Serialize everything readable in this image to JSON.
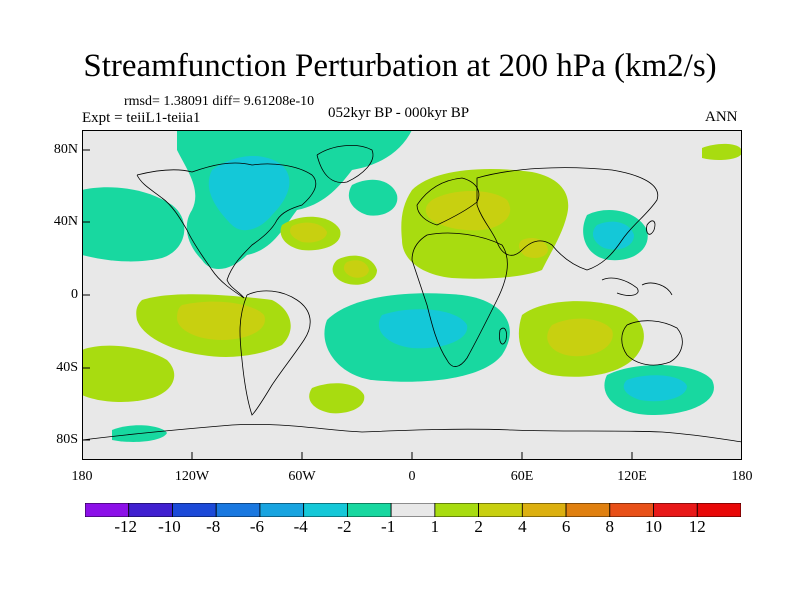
{
  "figure": {
    "title": "Streamfunction Perturbation at 200 hPa (km2/s)",
    "stats_label": "rmsd= 1.38091 diff= 9.61208e-10",
    "experiment_label": "Expt = teiiL1-teiia1",
    "period_label": "052kyr BP - 000kyr BP",
    "season_label": "ANN"
  },
  "axes": {
    "x_ticks": [
      "180",
      "120W",
      "60W",
      "0",
      "60E",
      "120E",
      "180"
    ],
    "y_ticks": [
      "80N",
      "40N",
      "0",
      "40S",
      "80S"
    ]
  },
  "colorbar": {
    "labels": [
      "-12",
      "-10",
      "-8",
      "-6",
      "-4",
      "-2",
      "-1",
      "1",
      "2",
      "4",
      "6",
      "8",
      "10",
      "12"
    ],
    "colors": [
      "#8c10e8",
      "#4020d0",
      "#1c4ad8",
      "#1a78e0",
      "#18a4e0",
      "#14c8d8",
      "#18d8a0",
      "#e8e8e8",
      "#a8dc10",
      "#c8d010",
      "#dcb010",
      "#e08010",
      "#e85018",
      "#e81818",
      "#e80808"
    ]
  },
  "map_colors": {
    "background": "#e8e8e8",
    "cyan_light": "#18d8a0",
    "cyan_mid": "#14c8d8",
    "green_yellow": "#a8dc10",
    "olive": "#c8d010",
    "coast": "#000000"
  }
}
